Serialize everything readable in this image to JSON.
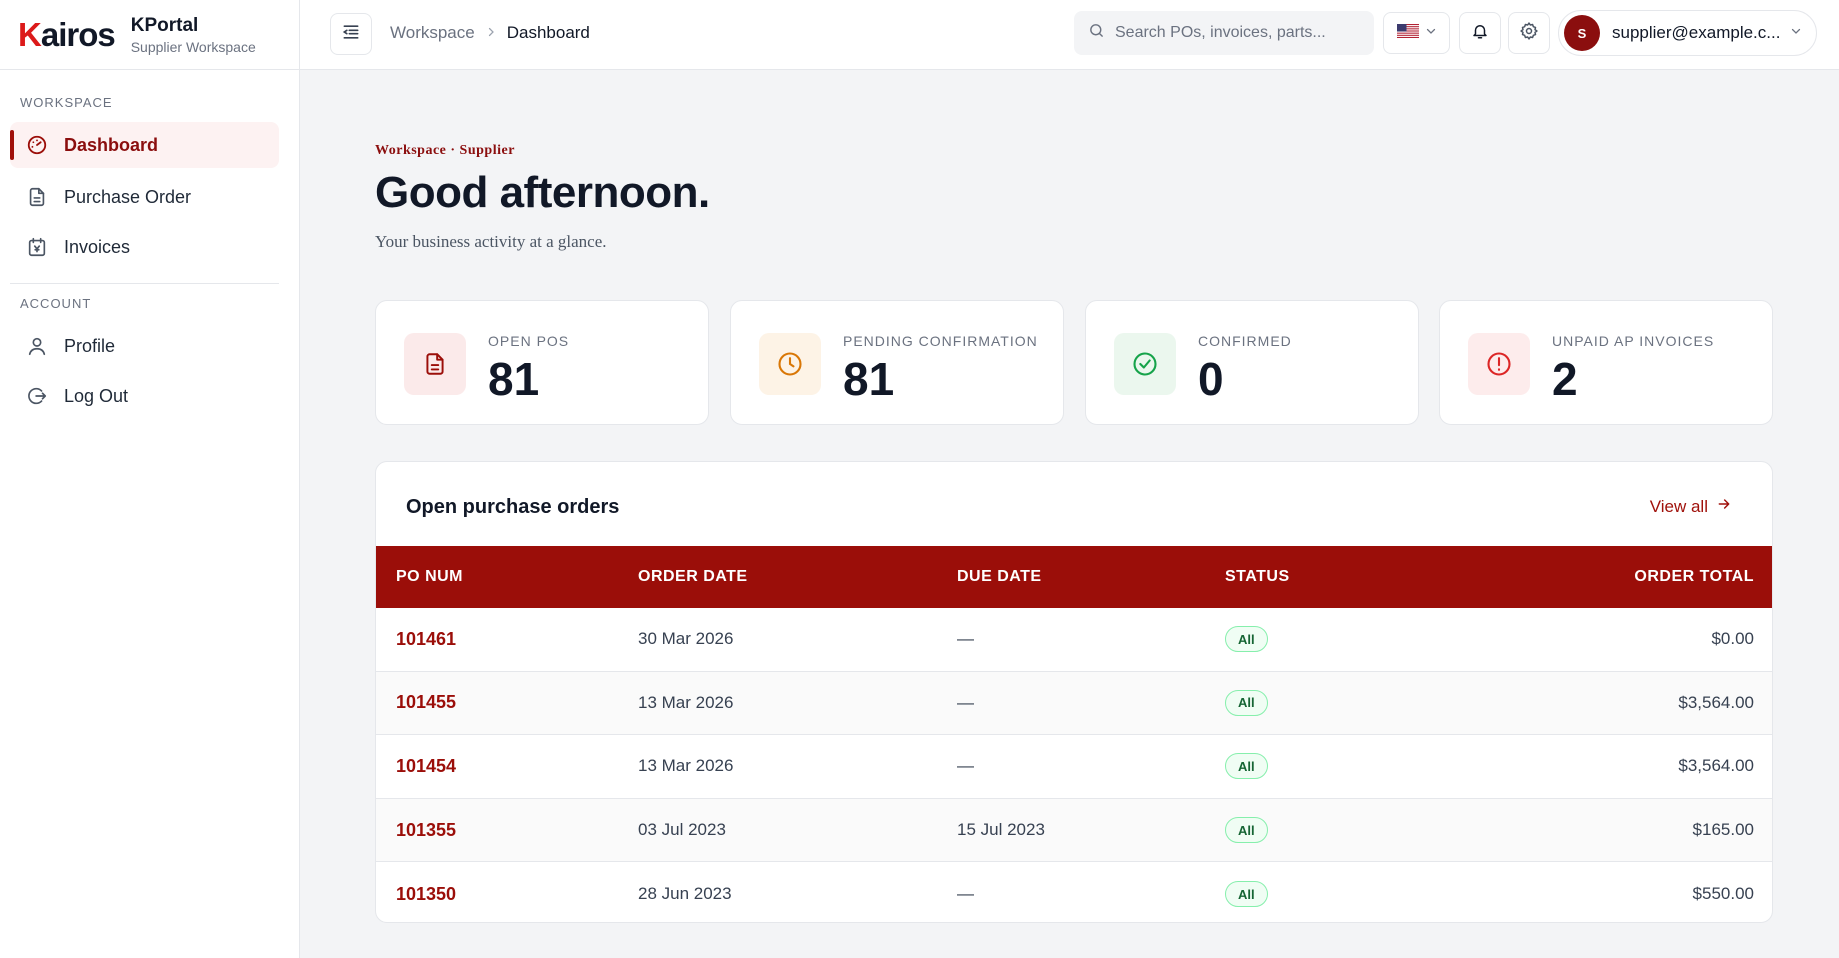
{
  "brand": {
    "logo_text": "Kairos",
    "app_name": "KPortal",
    "app_sub": "Supplier Workspace"
  },
  "sidebar": {
    "workspace_label": "WORKSPACE",
    "account_label": "ACCOUNT",
    "items": [
      {
        "label": "Dashboard",
        "icon": "dashboard-gauge-icon",
        "active": true
      },
      {
        "label": "Purchase Order",
        "icon": "document-icon",
        "active": false
      },
      {
        "label": "Invoices",
        "icon": "invoice-icon",
        "active": false
      }
    ],
    "account_items": [
      {
        "label": "Profile",
        "icon": "user-icon"
      },
      {
        "label": "Log Out",
        "icon": "logout-icon"
      }
    ]
  },
  "topbar": {
    "breadcrumb": {
      "parent": "Workspace",
      "current": "Dashboard"
    },
    "search_placeholder": "Search POs, invoices, parts...",
    "language": "en-US",
    "user": {
      "initial": "S",
      "email": "supplier@example.c..."
    }
  },
  "main": {
    "eyebrow": "Workspace · Supplier",
    "greeting": "Good afternoon.",
    "subtitle": "Your business activity at a glance."
  },
  "stats": [
    {
      "label": "OPEN POS",
      "value": "81",
      "icon": "document-icon",
      "color": "#9b0e09"
    },
    {
      "label": "PENDING CONFIRMATION",
      "value": "81",
      "icon": "clock-icon",
      "color": "#d97706"
    },
    {
      "label": "CONFIRMED",
      "value": "0",
      "icon": "check-circle-icon",
      "color": "#16a34a"
    },
    {
      "label": "UNPAID AP INVOICES",
      "value": "2",
      "icon": "alert-circle-icon",
      "color": "#dc2626"
    }
  ],
  "orders": {
    "title": "Open purchase orders",
    "view_all": "View all",
    "columns": {
      "po": "PO NUM",
      "order_date": "ORDER DATE",
      "due_date": "DUE DATE",
      "status": "STATUS",
      "total": "ORDER TOTAL"
    },
    "rows": [
      {
        "po": "101461",
        "order_date": "30 Mar 2026",
        "due_date": "—",
        "status": "All",
        "total": "$0.00"
      },
      {
        "po": "101455",
        "order_date": "13 Mar 2026",
        "due_date": "—",
        "status": "All",
        "total": "$3,564.00"
      },
      {
        "po": "101454",
        "order_date": "13 Mar 2026",
        "due_date": "—",
        "status": "All",
        "total": "$3,564.00"
      },
      {
        "po": "101355",
        "order_date": "03 Jul 2023",
        "due_date": "15 Jul 2023",
        "status": "All",
        "total": "$165.00"
      },
      {
        "po": "101350",
        "order_date": "28 Jun 2023",
        "due_date": "—",
        "status": "All",
        "total": "$550.00"
      }
    ]
  },
  "colors": {
    "brand": "#9b0e09",
    "logo_accent": "#dc1a1a",
    "background": "#f3f4f6"
  }
}
